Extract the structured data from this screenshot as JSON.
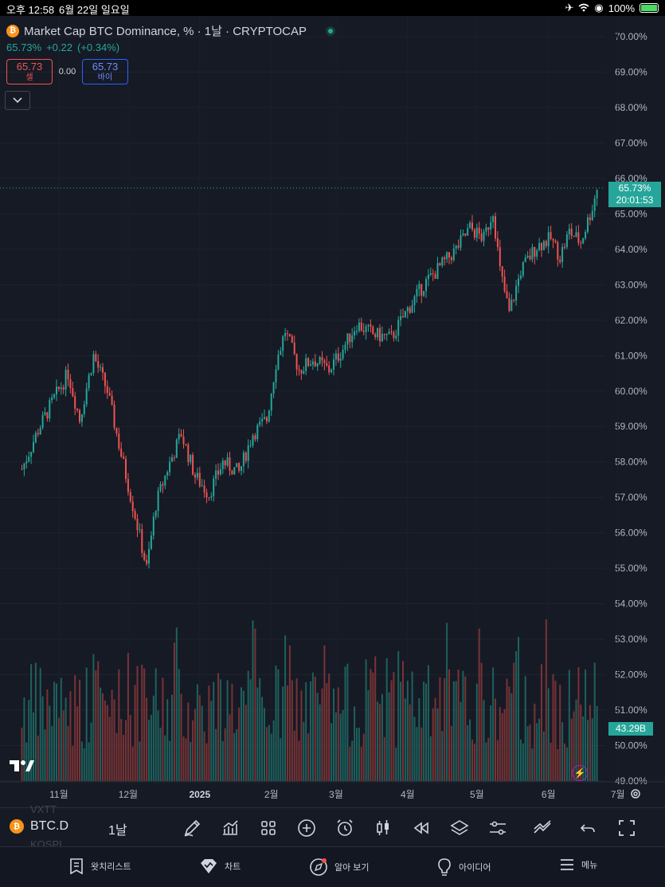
{
  "status_bar": {
    "time": "오후 12:58",
    "date": "6월 22일 일요일",
    "battery": "100%"
  },
  "header": {
    "title": "Market Cap BTC Dominance, % · 1날 · CRYPTOCAP",
    "last": "65.73%",
    "change": "+0.22",
    "change_pct": "(+0.34%)",
    "sell_price": "65.73",
    "sell_label": "셀",
    "spread": "0.00",
    "buy_price": "65.73",
    "buy_label": "바이"
  },
  "chart_data": {
    "type": "candlestick",
    "title": "Market Cap BTC Dominance, % · 1날 · CRYPTOCAP",
    "y_axis": {
      "min": 49,
      "max": 70,
      "unit": "%",
      "ticks": [
        "70.00%",
        "69.00%",
        "68.00%",
        "67.00%",
        "66.00%",
        "65.00%",
        "64.00%",
        "63.00%",
        "62.00%",
        "61.00%",
        "60.00%",
        "59.00%",
        "58.00%",
        "57.00%",
        "56.00%",
        "55.00%",
        "54.00%",
        "53.00%",
        "52.00%",
        "51.00%",
        "50.00%",
        "49.00%"
      ]
    },
    "x_axis": {
      "labels": [
        "11월",
        "12월",
        "2025",
        "2월",
        "3월",
        "4월",
        "5월",
        "6월",
        "7월"
      ]
    },
    "last_price": "65.73%",
    "countdown": "20:01:53",
    "volume_label": "43.29B",
    "approx_close_path": [
      {
        "date": "2024-10-16",
        "value": 57.8
      },
      {
        "date": "2024-10-23",
        "value": 58.9
      },
      {
        "date": "2024-10-30",
        "value": 59.8
      },
      {
        "date": "2024-11-05",
        "value": 60.5
      },
      {
        "date": "2024-11-10",
        "value": 59.2
      },
      {
        "date": "2024-11-16",
        "value": 61.0
      },
      {
        "date": "2024-11-22",
        "value": 60.0
      },
      {
        "date": "2024-11-28",
        "value": 58.2
      },
      {
        "date": "2024-12-04",
        "value": 56.5
      },
      {
        "date": "2024-12-09",
        "value": 55.0
      },
      {
        "date": "2024-12-13",
        "value": 56.8
      },
      {
        "date": "2024-12-18",
        "value": 57.8
      },
      {
        "date": "2024-12-24",
        "value": 58.8
      },
      {
        "date": "2024-12-30",
        "value": 57.6
      },
      {
        "date": "2025-01-05",
        "value": 57.1
      },
      {
        "date": "2025-01-11",
        "value": 58.0
      },
      {
        "date": "2025-01-18",
        "value": 57.7
      },
      {
        "date": "2025-01-24",
        "value": 58.8
      },
      {
        "date": "2025-01-30",
        "value": 59.2
      },
      {
        "date": "2025-02-03",
        "value": 60.8
      },
      {
        "date": "2025-02-07",
        "value": 61.7
      },
      {
        "date": "2025-02-13",
        "value": 60.6
      },
      {
        "date": "2025-02-19",
        "value": 60.9
      },
      {
        "date": "2025-02-26",
        "value": 60.6
      },
      {
        "date": "2025-03-04",
        "value": 61.2
      },
      {
        "date": "2025-03-10",
        "value": 61.9
      },
      {
        "date": "2025-03-17",
        "value": 61.6
      },
      {
        "date": "2025-03-25",
        "value": 61.5
      },
      {
        "date": "2025-04-01",
        "value": 62.3
      },
      {
        "date": "2025-04-08",
        "value": 63.0
      },
      {
        "date": "2025-04-15",
        "value": 63.5
      },
      {
        "date": "2025-04-22",
        "value": 64.0
      },
      {
        "date": "2025-04-28",
        "value": 64.6
      },
      {
        "date": "2025-05-04",
        "value": 64.3
      },
      {
        "date": "2025-05-08",
        "value": 65.1
      },
      {
        "date": "2025-05-11",
        "value": 63.4
      },
      {
        "date": "2025-05-15",
        "value": 62.2
      },
      {
        "date": "2025-05-20",
        "value": 63.4
      },
      {
        "date": "2025-05-27",
        "value": 64.1
      },
      {
        "date": "2025-06-02",
        "value": 64.3
      },
      {
        "date": "2025-06-06",
        "value": 63.8
      },
      {
        "date": "2025-06-10",
        "value": 64.5
      },
      {
        "date": "2025-06-15",
        "value": 64.2
      },
      {
        "date": "2025-06-18",
        "value": 64.8
      },
      {
        "date": "2025-06-20",
        "value": 65.2
      },
      {
        "date": "2025-06-22",
        "value": 65.73
      }
    ],
    "colors": {
      "up": "#26a69a",
      "down": "#ef5350",
      "background": "#161a25"
    }
  },
  "toolbar": {
    "symbol": "BTC.D",
    "interval": "1날",
    "ghost_1": "VXTT",
    "ghost_2": "KOSPI"
  },
  "nav": {
    "watchlist": "왓치리스트",
    "chart": "차트",
    "explore": "알아 보기",
    "ideas": "아이디어",
    "menu": "메뉴"
  },
  "icons": [
    "bitcoin-icon",
    "pencil-icon",
    "indicators-icon",
    "layout-grid-icon",
    "plus-circle-icon",
    "alarm-icon",
    "candles-icon",
    "replay-icon",
    "layers-icon",
    "settings-sliders-icon",
    "compare-icon",
    "undo-icon",
    "fullscreen-icon",
    "watchlist-icon",
    "chart-icon",
    "explore-icon",
    "ideas-icon",
    "menu-icon",
    "gear-icon",
    "bolt-icon"
  ]
}
